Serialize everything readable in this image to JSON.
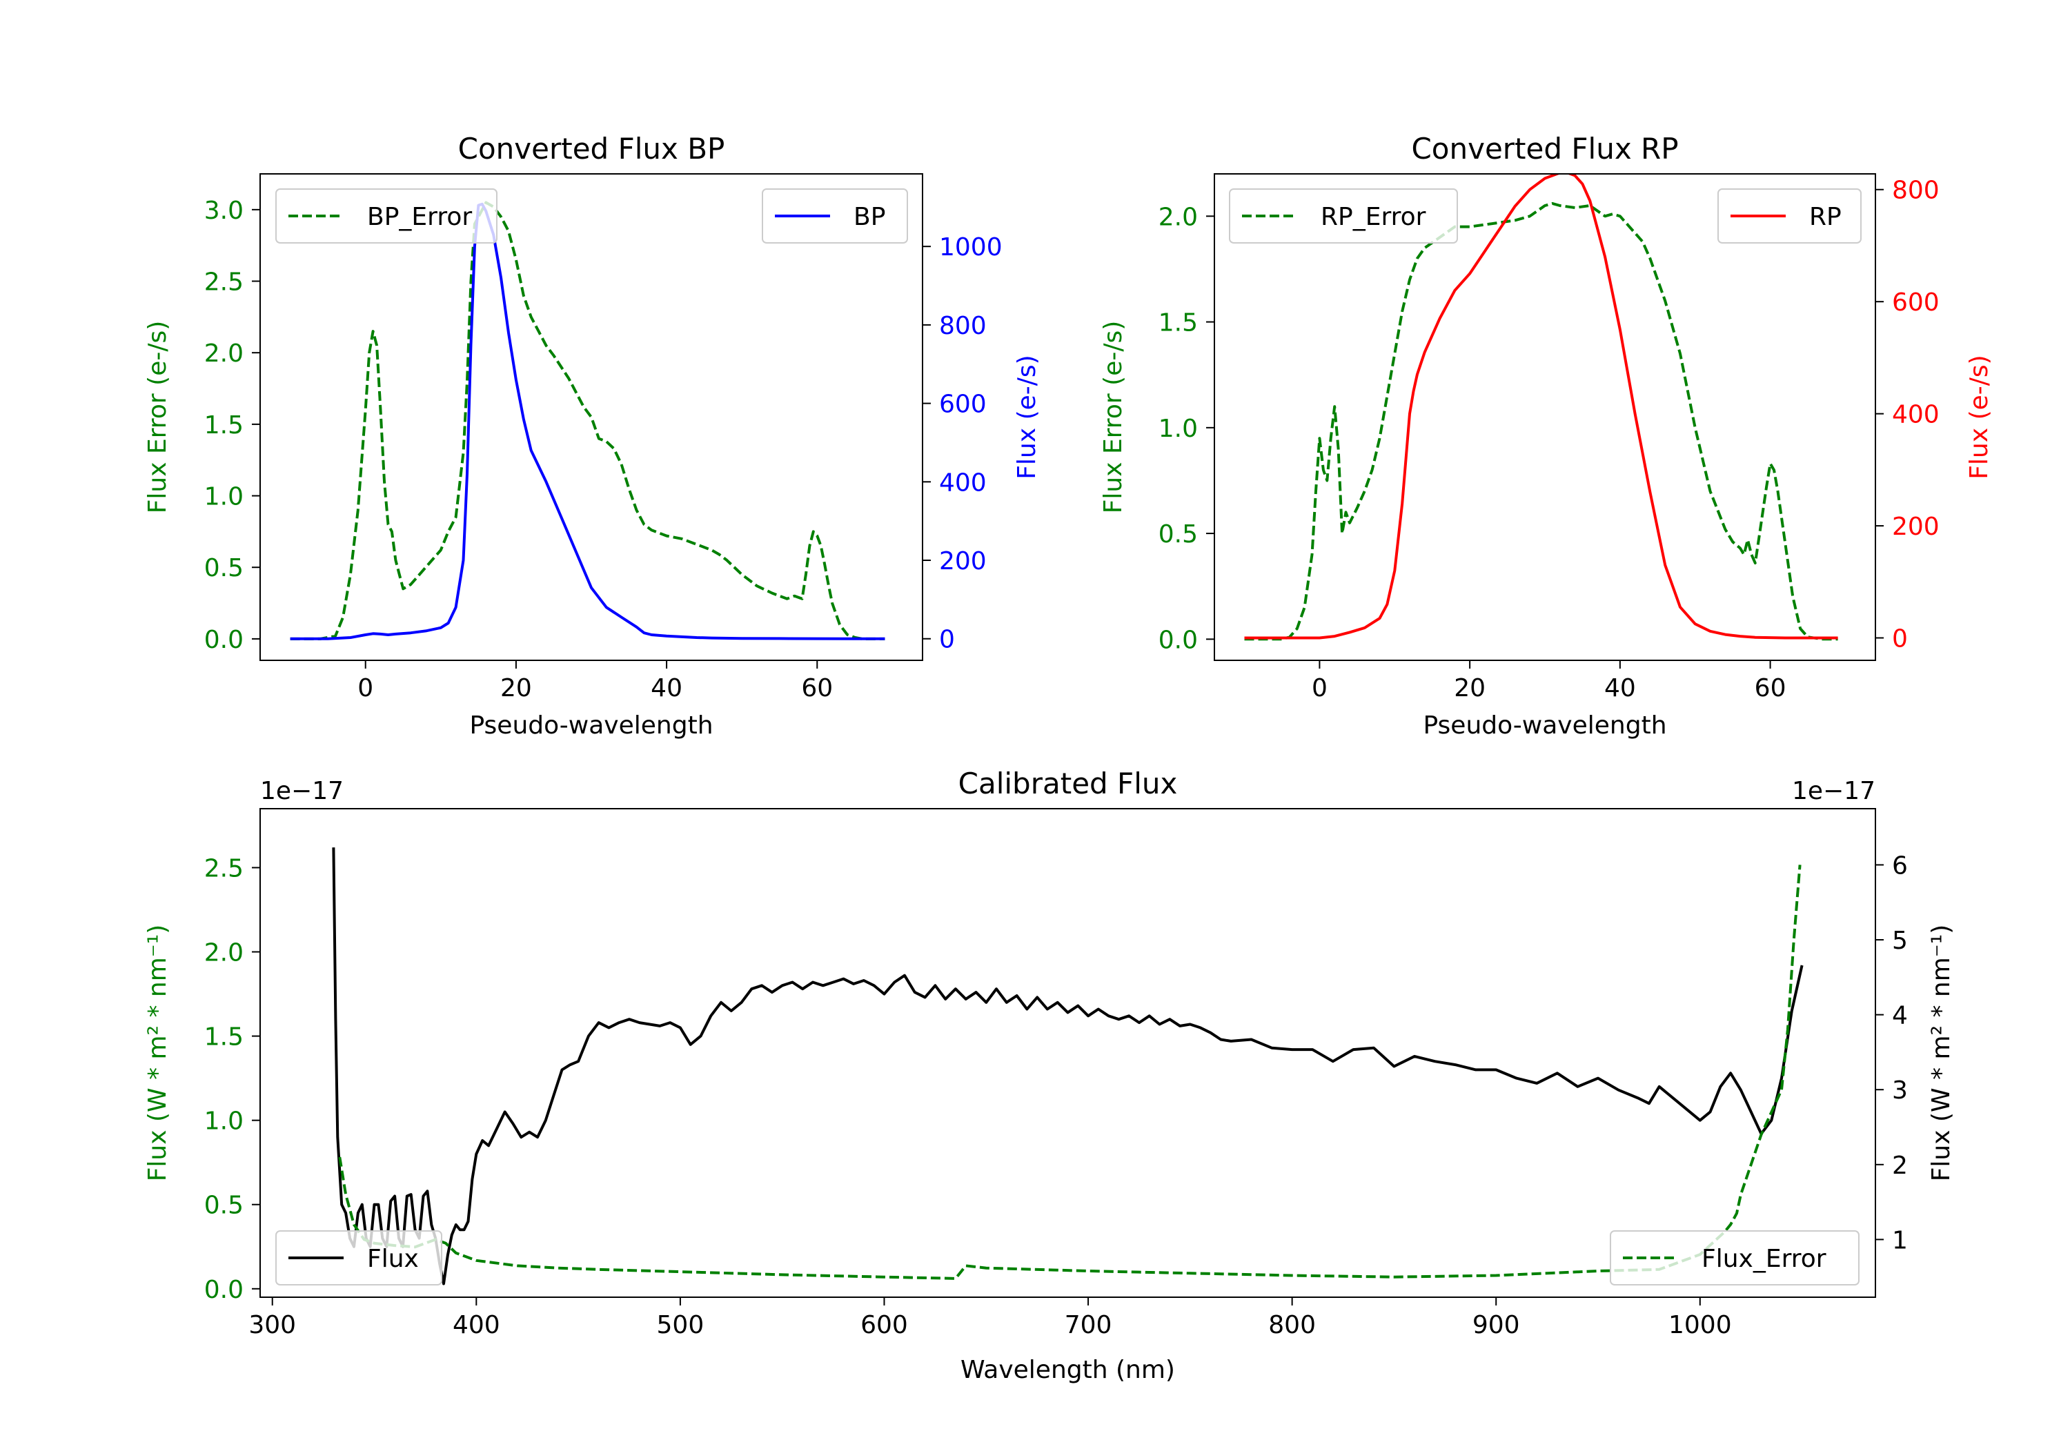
{
  "colors": {
    "bp": "#0000ff",
    "rp": "#ff0000",
    "error": "#008000",
    "flux": "#000000",
    "axes": "#000000"
  },
  "chart_data": [
    {
      "id": "bp",
      "type": "line",
      "title": "Converted Flux BP",
      "xlabel": "Pseudo-wavelength",
      "ylabel_left": "Flux Error (e-/s)",
      "ylabel_right": "Flux (e-/s)",
      "xlim": [
        -14,
        74
      ],
      "ylim_left": [
        -0.15,
        3.25
      ],
      "ylim_right": [
        -55,
        1185
      ],
      "xticks": [
        0,
        20,
        40,
        60
      ],
      "yticks_left": [
        0.0,
        0.5,
        1.0,
        1.5,
        2.0,
        2.5,
        3.0
      ],
      "ytick_labels_left": [
        "0.0",
        "0.5",
        "1.0",
        "1.5",
        "2.0",
        "2.5",
        "3.0"
      ],
      "yticks_right": [
        0,
        200,
        400,
        600,
        800,
        1000
      ],
      "ytick_labels_right": [
        "0",
        "200",
        "400",
        "600",
        "800",
        "1000"
      ],
      "legend_left": "BP_Error",
      "legend_right": "BP",
      "series": [
        {
          "name": "BP_Error",
          "axis": "left",
          "style": "dashed",
          "x": [
            -10,
            -6,
            -4,
            -3,
            -2,
            -1,
            0,
            0.5,
            1,
            1.5,
            2,
            2.5,
            3,
            3.5,
            4,
            4.5,
            5,
            6,
            8,
            10,
            11,
            12,
            13,
            13.5,
            14,
            14.5,
            15,
            16,
            17,
            18,
            19,
            20,
            21,
            22,
            23,
            24,
            25,
            26,
            27,
            28,
            29,
            30,
            31,
            32,
            33,
            34,
            35,
            36,
            37,
            38,
            40,
            42,
            44,
            46,
            47,
            48,
            50,
            52,
            54,
            56,
            57,
            58,
            58.5,
            59,
            59.5,
            60,
            60.5,
            61,
            61.5,
            62,
            63,
            64,
            65,
            66,
            67,
            69
          ],
          "values": [
            0,
            0,
            0.02,
            0.15,
            0.45,
            0.9,
            1.6,
            2.0,
            2.15,
            2.05,
            1.6,
            1.1,
            0.8,
            0.75,
            0.55,
            0.45,
            0.35,
            0.38,
            0.5,
            0.62,
            0.75,
            0.85,
            1.3,
            1.8,
            2.5,
            2.9,
            2.95,
            3.05,
            3.02,
            2.95,
            2.85,
            2.65,
            2.4,
            2.25,
            2.15,
            2.05,
            1.98,
            1.9,
            1.82,
            1.72,
            1.62,
            1.55,
            1.4,
            1.38,
            1.33,
            1.22,
            1.05,
            0.9,
            0.8,
            0.76,
            0.72,
            0.7,
            0.66,
            0.62,
            0.59,
            0.55,
            0.45,
            0.37,
            0.32,
            0.28,
            0.3,
            0.28,
            0.45,
            0.65,
            0.75,
            0.72,
            0.65,
            0.52,
            0.38,
            0.25,
            0.1,
            0.03,
            0.01,
            0,
            0,
            0
          ]
        },
        {
          "name": "BP",
          "axis": "right",
          "style": "solid",
          "x": [
            -10,
            -5,
            -2,
            0,
            1,
            2,
            3,
            4,
            6,
            8,
            10,
            11,
            12,
            13,
            13.5,
            14,
            14.5,
            15,
            15.5,
            16,
            17,
            18,
            19,
            20,
            21,
            22,
            24,
            26,
            28,
            30,
            32,
            34,
            36,
            37,
            38,
            40,
            42,
            44,
            46,
            50,
            55,
            60,
            65,
            69
          ],
          "values": [
            0,
            0,
            3,
            10,
            13,
            12,
            10,
            12,
            15,
            20,
            28,
            40,
            80,
            200,
            420,
            750,
            1000,
            1105,
            1108,
            1090,
            1030,
            920,
            780,
            660,
            560,
            480,
            400,
            310,
            220,
            130,
            80,
            55,
            30,
            15,
            10,
            7,
            5,
            3,
            2,
            1,
            0.5,
            0.3,
            0,
            0
          ]
        }
      ]
    },
    {
      "id": "rp",
      "type": "line",
      "title": "Converted Flux RP",
      "xlabel": "Pseudo-wavelength",
      "ylabel_left": "Flux Error (e-/s)",
      "ylabel_right": "Flux (e-/s)",
      "xlim": [
        -14,
        74
      ],
      "ylim_left": [
        -0.1,
        2.2
      ],
      "ylim_right": [
        -40,
        828
      ],
      "xticks": [
        0,
        20,
        40,
        60
      ],
      "yticks_left": [
        0.0,
        0.5,
        1.0,
        1.5,
        2.0
      ],
      "ytick_labels_left": [
        "0.0",
        "0.5",
        "1.0",
        "1.5",
        "2.0"
      ],
      "yticks_right": [
        0,
        200,
        400,
        600,
        800
      ],
      "ytick_labels_right": [
        "0",
        "200",
        "400",
        "600",
        "800"
      ],
      "legend_left": "RP_Error",
      "legend_right": "RP",
      "series": [
        {
          "name": "RP_Error",
          "axis": "left",
          "style": "dashed",
          "x": [
            -10,
            -5,
            -4,
            -3,
            -2,
            -1,
            -0.5,
            0,
            0.5,
            1,
            1.5,
            2,
            2.5,
            3,
            3.5,
            4,
            5,
            6,
            7,
            8,
            9,
            10,
            11,
            12,
            13,
            14,
            16,
            18,
            20,
            22,
            24,
            26,
            28,
            30,
            31,
            32,
            34,
            36,
            38,
            39,
            40,
            41,
            42,
            43,
            44,
            45,
            46,
            48,
            50,
            52,
            54,
            55,
            56,
            56.5,
            57,
            57.5,
            58,
            58.5,
            59,
            59.5,
            60,
            60.5,
            61,
            62,
            63,
            64,
            65,
            67,
            69
          ],
          "values": [
            0,
            0,
            0.01,
            0.05,
            0.15,
            0.4,
            0.7,
            0.95,
            0.8,
            0.75,
            0.95,
            1.1,
            0.9,
            0.5,
            0.6,
            0.55,
            0.62,
            0.7,
            0.8,
            0.95,
            1.15,
            1.35,
            1.55,
            1.7,
            1.8,
            1.85,
            1.9,
            1.95,
            1.95,
            1.96,
            1.97,
            1.98,
            2.0,
            2.05,
            2.06,
            2.05,
            2.04,
            2.05,
            2.0,
            2.01,
            2.0,
            1.96,
            1.92,
            1.88,
            1.8,
            1.7,
            1.6,
            1.35,
            1.0,
            0.7,
            0.52,
            0.46,
            0.43,
            0.4,
            0.47,
            0.4,
            0.36,
            0.48,
            0.6,
            0.72,
            0.83,
            0.8,
            0.7,
            0.45,
            0.2,
            0.05,
            0.01,
            0,
            0
          ]
        },
        {
          "name": "RP",
          "axis": "right",
          "style": "solid",
          "x": [
            -10,
            -5,
            0,
            2,
            4,
            6,
            8,
            9,
            10,
            11,
            12,
            12.5,
            13,
            14,
            16,
            18,
            20,
            22,
            24,
            26,
            28,
            30,
            32,
            33,
            34,
            35,
            36,
            38,
            40,
            42,
            44,
            46,
            48,
            50,
            52,
            54,
            56,
            58,
            60,
            62,
            65,
            69
          ],
          "values": [
            0,
            0,
            0,
            3,
            10,
            18,
            35,
            60,
            120,
            240,
            400,
            440,
            470,
            510,
            570,
            620,
            650,
            690,
            730,
            770,
            800,
            820,
            830,
            830,
            825,
            810,
            780,
            680,
            550,
            400,
            260,
            130,
            55,
            25,
            12,
            6,
            3,
            1,
            0.5,
            0,
            0,
            0
          ]
        }
      ]
    },
    {
      "id": "calibrated",
      "type": "line",
      "title": "Calibrated Flux",
      "xlabel": "Wavelength (nm)",
      "ylabel_left": "Flux (W * m² * nm⁻¹)",
      "ylabel_right": "Flux (W * m² * nm⁻¹)",
      "offset_left": "1e−17",
      "offset_right": "1e−17",
      "xlim": [
        294,
        1086
      ],
      "ylim_left": [
        -0.05,
        2.85
      ],
      "ylim_right": [
        0.23,
        6.75
      ],
      "xticks": [
        300,
        400,
        500,
        600,
        700,
        800,
        900,
        1000
      ],
      "yticks_left": [
        0.0,
        0.5,
        1.0,
        1.5,
        2.0,
        2.5
      ],
      "ytick_labels_left": [
        "0.0",
        "0.5",
        "1.0",
        "1.5",
        "2.0",
        "2.5"
      ],
      "yticks_right": [
        1,
        2,
        3,
        4,
        5,
        6
      ],
      "ytick_labels_right": [
        "1",
        "2",
        "3",
        "4",
        "5",
        "6"
      ],
      "legend_left": "Flux",
      "legend_right": "Flux_Error",
      "series": [
        {
          "name": "Flux",
          "axis": "left",
          "style": "solid",
          "x": [
            330,
            331,
            332,
            334,
            336,
            338,
            340,
            342,
            344,
            346,
            348,
            350,
            352,
            354,
            356,
            358,
            360,
            362,
            364,
            366,
            368,
            370,
            372,
            374,
            376,
            378,
            380,
            382,
            384,
            386,
            388,
            390,
            392,
            394,
            396,
            398,
            400,
            403,
            406,
            410,
            414,
            418,
            422,
            426,
            430,
            434,
            438,
            442,
            446,
            450,
            455,
            460,
            465,
            470,
            475,
            480,
            485,
            490,
            495,
            500,
            505,
            510,
            515,
            520,
            525,
            530,
            535,
            540,
            545,
            550,
            555,
            560,
            565,
            570,
            575,
            580,
            585,
            590,
            595,
            600,
            605,
            610,
            615,
            620,
            625,
            630,
            635,
            640,
            645,
            650,
            655,
            660,
            665,
            670,
            675,
            680,
            685,
            690,
            695,
            700,
            705,
            710,
            715,
            720,
            725,
            730,
            735,
            740,
            745,
            750,
            755,
            760,
            765,
            770,
            780,
            790,
            800,
            810,
            820,
            830,
            840,
            850,
            860,
            870,
            880,
            890,
            900,
            910,
            920,
            930,
            940,
            950,
            960,
            970,
            975,
            980,
            990,
            1000,
            1005,
            1010,
            1015,
            1020,
            1025,
            1030,
            1035,
            1040,
            1045,
            1050
          ],
          "values": [
            2.62,
            1.6,
            0.9,
            0.5,
            0.45,
            0.3,
            0.25,
            0.45,
            0.5,
            0.3,
            0.25,
            0.5,
            0.5,
            0.3,
            0.25,
            0.52,
            0.55,
            0.3,
            0.25,
            0.55,
            0.56,
            0.35,
            0.3,
            0.55,
            0.58,
            0.38,
            0.3,
            0.15,
            0.03,
            0.2,
            0.32,
            0.38,
            0.35,
            0.35,
            0.4,
            0.65,
            0.8,
            0.88,
            0.85,
            0.95,
            1.05,
            0.98,
            0.9,
            0.93,
            0.9,
            1.0,
            1.15,
            1.3,
            1.33,
            1.35,
            1.5,
            1.58,
            1.55,
            1.58,
            1.6,
            1.58,
            1.57,
            1.56,
            1.58,
            1.55,
            1.45,
            1.5,
            1.62,
            1.7,
            1.65,
            1.7,
            1.78,
            1.8,
            1.76,
            1.8,
            1.82,
            1.78,
            1.82,
            1.8,
            1.82,
            1.84,
            1.81,
            1.83,
            1.8,
            1.75,
            1.82,
            1.86,
            1.76,
            1.73,
            1.8,
            1.72,
            1.78,
            1.72,
            1.76,
            1.7,
            1.78,
            1.7,
            1.74,
            1.66,
            1.73,
            1.66,
            1.7,
            1.64,
            1.68,
            1.62,
            1.66,
            1.62,
            1.6,
            1.62,
            1.58,
            1.62,
            1.57,
            1.6,
            1.56,
            1.57,
            1.55,
            1.52,
            1.48,
            1.47,
            1.48,
            1.43,
            1.42,
            1.42,
            1.35,
            1.42,
            1.43,
            1.32,
            1.38,
            1.35,
            1.33,
            1.3,
            1.3,
            1.25,
            1.22,
            1.28,
            1.2,
            1.25,
            1.18,
            1.13,
            1.1,
            1.2,
            1.1,
            1.0,
            1.05,
            1.2,
            1.28,
            1.18,
            1.05,
            0.92,
            1.0,
            1.25,
            1.65,
            1.92
          ]
        },
        {
          "name": "Flux_Error",
          "axis": "right",
          "style": "dashed",
          "x": [
            333,
            336,
            340,
            345,
            350,
            360,
            370,
            380,
            385,
            390,
            400,
            420,
            440,
            460,
            500,
            550,
            600,
            635,
            640,
            650,
            700,
            750,
            800,
            850,
            900,
            950,
            980,
            1000,
            1008,
            1012,
            1015,
            1018,
            1020,
            1025,
            1030,
            1035,
            1040,
            1043,
            1046,
            1049
          ],
          "values": [
            2.1,
            1.6,
            1.2,
            1.0,
            0.95,
            0.92,
            0.9,
            1.0,
            0.95,
            0.82,
            0.72,
            0.65,
            0.62,
            0.6,
            0.57,
            0.53,
            0.5,
            0.48,
            0.65,
            0.62,
            0.58,
            0.55,
            0.52,
            0.5,
            0.52,
            0.58,
            0.6,
            0.8,
            1.0,
            1.1,
            1.2,
            1.35,
            1.6,
            2.0,
            2.4,
            2.7,
            3.0,
            3.8,
            5.0,
            6.0
          ]
        }
      ]
    }
  ]
}
